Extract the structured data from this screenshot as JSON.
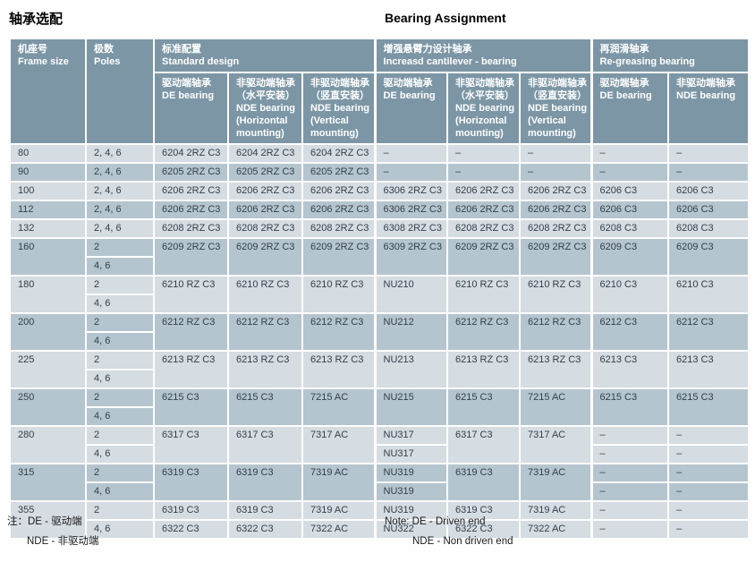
{
  "page": {
    "title_zh": "轴承选配",
    "title_en": "Bearing Assignment"
  },
  "colors": {
    "header_bg": "#7c96a5",
    "row_light": "#d5dce2",
    "row_dark": "#b5c5cf",
    "cell_text": "#333f49",
    "header_text": "#ffffff",
    "gridline": "#ffffff"
  },
  "table": {
    "headers": {
      "frame": "机座号\nFrame size",
      "poles": "极数\nPoles",
      "group_standard": "标准配置\nStandard design",
      "group_cantilever": "增强悬臂力设计轴承\nIncreasd cantilever - bearing",
      "group_regreasing": "再润滑轴承\nRe-greasing bearing",
      "sub": [
        "驱动端轴承\nDE bearing",
        "非驱动端轴承\n（水平安装）\nNDE bearing\n(Horizontal\nmounting)",
        "非驱动端轴承\n（竖直安装）\nNDE bearing\n(Vertical\nmounting)",
        "驱动端轴承\nDE bearing",
        "非驱动端轴承\n（水平安装）\nNDE bearing\n(Horizontal\nmounting)",
        "非驱动端轴承\n（竖直安装）\nNDE bearing\n(Vertical\nmounting)",
        "驱动端轴承\nDE bearing",
        "非驱动端轴承\nNDE bearing"
      ]
    },
    "col_names": [
      "std-de",
      "std-nde-horizontal",
      "std-nde-vertical",
      "cantilever-de",
      "cantilever-nde-horizontal",
      "cantilever-nde-vertical",
      "regrease-de",
      "regrease-nde"
    ],
    "rows": [
      {
        "frame": "80",
        "poles": [
          "2, 4, 6"
        ],
        "cells": [
          "6204 2RZ C3",
          "6204 2RZ C3",
          "6204 2RZ C3",
          "–",
          "–",
          "–",
          "–",
          "–"
        ]
      },
      {
        "frame": "90",
        "poles": [
          "2, 4, 6"
        ],
        "cells": [
          "6205 2RZ C3",
          "6205 2RZ C3",
          "6205 2RZ C3",
          "–",
          "–",
          "–",
          "–",
          "–"
        ]
      },
      {
        "frame": "100",
        "poles": [
          "2, 4, 6"
        ],
        "cells": [
          "6206 2RZ C3",
          "6206 2RZ C3",
          "6206 2RZ C3",
          "6306 2RZ C3",
          "6206 2RZ C3",
          "6206 2RZ C3",
          "6206 C3",
          "6206 C3"
        ]
      },
      {
        "frame": "112",
        "poles": [
          "2, 4, 6"
        ],
        "cells": [
          "6206 2RZ C3",
          "6206 2RZ C3",
          "6206 2RZ C3",
          "6306 2RZ C3",
          "6206 2RZ C3",
          "6206 2RZ C3",
          "6206 C3",
          "6206 C3"
        ]
      },
      {
        "frame": "132",
        "poles": [
          "2, 4, 6"
        ],
        "cells": [
          "6208 2RZ C3",
          "6208 2RZ C3",
          "6208 2RZ C3",
          "6308 2RZ C3",
          "6208 2RZ C3",
          "6208 2RZ C3",
          "6208 C3",
          "6208 C3"
        ]
      },
      {
        "frame": "160",
        "poles": [
          "2",
          "4, 6"
        ],
        "cells": [
          "6209 2RZ C3",
          "6209 2RZ C3",
          "6209 2RZ C3",
          "6309 2RZ C3",
          "6209 2RZ C3",
          "6209 2RZ C3",
          "6209 C3",
          "6209 C3"
        ]
      },
      {
        "frame": "180",
        "poles": [
          "2",
          "4, 6"
        ],
        "cells": [
          "6210 RZ C3",
          "6210 RZ C3",
          "6210 RZ C3",
          "NU210",
          "6210 RZ C3",
          "6210 RZ C3",
          "6210 C3",
          "6210 C3"
        ]
      },
      {
        "frame": "200",
        "poles": [
          "2",
          "4, 6"
        ],
        "cells": [
          "6212 RZ C3",
          "6212 RZ C3",
          "6212 RZ C3",
          "NU212",
          "6212 RZ C3",
          "6212 RZ C3",
          "6212 C3",
          "6212 C3"
        ]
      },
      {
        "frame": "225",
        "poles": [
          "2",
          "4, 6"
        ],
        "cells": [
          "6213 RZ C3",
          "6213 RZ C3",
          "6213 RZ C3",
          "NU213",
          "6213 RZ C3",
          "6213 RZ C3",
          "6213 C3",
          "6213 C3"
        ]
      },
      {
        "frame": "250",
        "poles": [
          "2",
          "4, 6"
        ],
        "cells": [
          "6215 C3",
          "6215 C3",
          "7215 AC",
          "NU215",
          "6215 C3",
          "7215 AC",
          "6215 C3",
          "6215 C3"
        ]
      },
      {
        "frame": "280",
        "poles": [
          "2",
          "4, 6"
        ],
        "cells": [
          "6317 C3",
          "6317 C3",
          "7317 AC",
          [
            "NU317",
            "NU317"
          ],
          "6317 C3",
          "7317 AC",
          [
            "–",
            "–"
          ],
          [
            "–",
            "–"
          ]
        ]
      },
      {
        "frame": "315",
        "poles": [
          "2",
          "4, 6"
        ],
        "cells": [
          "6319 C3",
          "6319 C3",
          "7319 AC",
          [
            "NU319",
            "NU319"
          ],
          "6319 C3",
          "7319 AC",
          [
            "–",
            "–"
          ],
          [
            "–",
            "–"
          ]
        ]
      },
      {
        "frame": "355",
        "poles": [
          "2",
          "4, 6"
        ],
        "cells": [
          [
            "6319 C3",
            "6322 C3"
          ],
          [
            "6319 C3",
            "6322 C3"
          ],
          [
            "7319 AC",
            "7322 AC"
          ],
          [
            "NU319",
            "NU322"
          ],
          [
            "6319 C3",
            "6322 C3"
          ],
          [
            "7319 AC",
            "7322 AC"
          ],
          [
            "–",
            "–"
          ],
          [
            "–",
            "–"
          ]
        ]
      }
    ]
  },
  "notes": {
    "zh_line1": "注：DE - 驱动端",
    "zh_line2": "NDE - 非驱动端",
    "en_line1": "Note: DE - Driven end",
    "en_line2": "NDE - Non driven end"
  }
}
